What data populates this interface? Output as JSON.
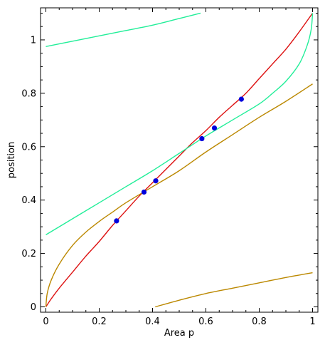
{
  "chart_data": {
    "type": "line",
    "title": "",
    "xlabel": "Area p",
    "ylabel": "position",
    "xlim": [
      -0.02,
      1.02
    ],
    "ylim": [
      -0.02,
      1.12
    ],
    "xticks": [
      0,
      0.2,
      0.4,
      0.6,
      0.8,
      1
    ],
    "xtick_labels": [
      "0",
      "0.2",
      "0.4",
      "0.6",
      "0.8",
      "1"
    ],
    "yticks": [
      0,
      0.2,
      0.4,
      0.6,
      0.8,
      1
    ],
    "ytick_labels": [
      "0",
      "0.2",
      "0.4",
      "0.6",
      "0.8",
      "1"
    ],
    "grid": false,
    "legend": "none",
    "series": [
      {
        "color": "#dd1111",
        "x": [
          0,
          0.02,
          0.05,
          0.1,
          0.15,
          0.2,
          0.25,
          0.3,
          0.35,
          0.4,
          0.45,
          0.5,
          0.55,
          0.6,
          0.65,
          0.7,
          0.75,
          0.8,
          0.85,
          0.9,
          0.95,
          1.0
        ],
        "y": [
          0.0,
          0.03,
          0.07,
          0.13,
          0.19,
          0.245,
          0.305,
          0.36,
          0.415,
          0.465,
          0.515,
          0.565,
          0.615,
          0.66,
          0.71,
          0.755,
          0.8,
          0.855,
          0.91,
          0.965,
          1.03,
          1.1
        ]
      },
      {
        "color": "#22ee99",
        "x": [
          0,
          0.1,
          0.2,
          0.3,
          0.4,
          0.5,
          0.6,
          0.7,
          0.8,
          0.85,
          0.9,
          0.95,
          0.98,
          0.995,
          1.0
        ],
        "y": [
          0.27,
          0.33,
          0.39,
          0.45,
          0.51,
          0.575,
          0.64,
          0.7,
          0.76,
          0.8,
          0.845,
          0.91,
          0.98,
          1.04,
          1.1
        ]
      },
      {
        "color": "#22ee99",
        "x": [
          0,
          0.1,
          0.2,
          0.3,
          0.4,
          0.5,
          0.58
        ],
        "y": [
          0.975,
          0.995,
          1.015,
          1.035,
          1.055,
          1.08,
          1.1
        ]
      },
      {
        "color": "#bb8800",
        "x": [
          0,
          0.005,
          0.02,
          0.05,
          0.1,
          0.15,
          0.2,
          0.25,
          0.3,
          0.4,
          0.5,
          0.6,
          0.7,
          0.8,
          0.9,
          1.0
        ],
        "y": [
          0.0,
          0.05,
          0.1,
          0.16,
          0.23,
          0.28,
          0.32,
          0.355,
          0.39,
          0.45,
          0.51,
          0.58,
          0.645,
          0.71,
          0.77,
          0.835
        ]
      },
      {
        "color": "#bb8800",
        "x": [
          0.41,
          0.5,
          0.6,
          0.7,
          0.8,
          0.9,
          1.0
        ],
        "y": [
          0.0,
          0.025,
          0.05,
          0.07,
          0.09,
          0.11,
          0.128
        ]
      }
    ],
    "points": {
      "color": "#0000dd",
      "x": [
        0.265,
        0.368,
        0.412,
        0.585,
        0.632,
        0.733
      ],
      "y": [
        0.322,
        0.43,
        0.472,
        0.63,
        0.67,
        0.778
      ]
    }
  }
}
